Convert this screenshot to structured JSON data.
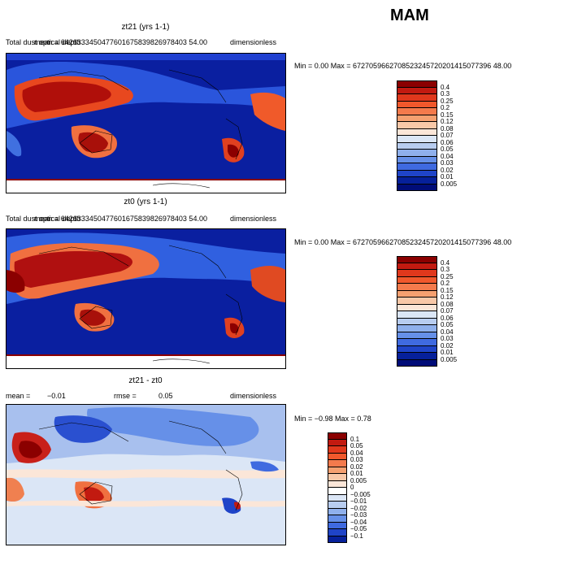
{
  "season": "MAM",
  "panels": [
    {
      "title": "zt21 (yrs 1-1)",
      "field_label": "Total dust optical depth",
      "mean_text": "mean = 6426333450477601675839826978403 54.00",
      "units": "dimensionless",
      "range_text": "Min =    0.00 Max = 6727059662708523245720201415077396 48.00",
      "colorbar": {
        "labels": [
          "0.4",
          "0.3",
          "0.25",
          "0.2",
          "0.15",
          "0.12",
          "0.08",
          "0.07",
          "0.06",
          "0.05",
          "0.04",
          "0.03",
          "0.02",
          "0.01",
          "0.005"
        ],
        "colors": [
          "#8b0000",
          "#c21a10",
          "#e0381c",
          "#f0582c",
          "#f47a4c",
          "#f5a070",
          "#f8c8a8",
          "#fbe6d8",
          "#dbe6f6",
          "#b8cdf0",
          "#8fb0ec",
          "#6690e8",
          "#3f6ae0",
          "#1f44c8",
          "#06209a",
          "#000c78"
        ]
      }
    },
    {
      "title": "zt0 (yrs 1-1)",
      "field_label": "Total dust optical depth",
      "mean_text": "mean = 6426333450477601675839826978403 54.00",
      "units": "dimensionless",
      "range_text": "Min =    0.00 Max = 6727059662708523245720201415077396 48.00",
      "colorbar": {
        "labels": [
          "0.4",
          "0.3",
          "0.25",
          "0.2",
          "0.15",
          "0.12",
          "0.08",
          "0.07",
          "0.06",
          "0.05",
          "0.04",
          "0.03",
          "0.02",
          "0.01",
          "0.005"
        ],
        "colors": [
          "#8b0000",
          "#c21a10",
          "#e0381c",
          "#f0582c",
          "#f47a4c",
          "#f5a070",
          "#f8c8a8",
          "#fbe6d8",
          "#dbe6f6",
          "#b8cdf0",
          "#8fb0ec",
          "#6690e8",
          "#3f6ae0",
          "#1f44c8",
          "#06209a",
          "#000c78"
        ]
      }
    },
    {
      "title": "zt21 - zt0",
      "mean_label": "mean =",
      "mean_value": "−0.01",
      "rmse_label": "rmse =",
      "rmse_value": "0.05",
      "units": "dimensionless",
      "range_text": "Min =  −0.98 Max =    0.78",
      "colorbar": {
        "labels": [
          "0.1",
          "0.05",
          "0.04",
          "0.03",
          "0.02",
          "0.01",
          "0.005",
          "0",
          "−0.005",
          "−0.01",
          "−0.02",
          "−0.03",
          "−0.04",
          "−0.05",
          "−0.1"
        ],
        "colors": [
          "#8b0000",
          "#c21a10",
          "#e0381c",
          "#f0582c",
          "#f47a4c",
          "#f5a070",
          "#f8c8a8",
          "#fbe6d8",
          "#ffffff",
          "#dbe6f6",
          "#b8cdf0",
          "#8fb0ec",
          "#6690e8",
          "#3f6ae0",
          "#1f44c8",
          "#06209a"
        ]
      }
    }
  ]
}
